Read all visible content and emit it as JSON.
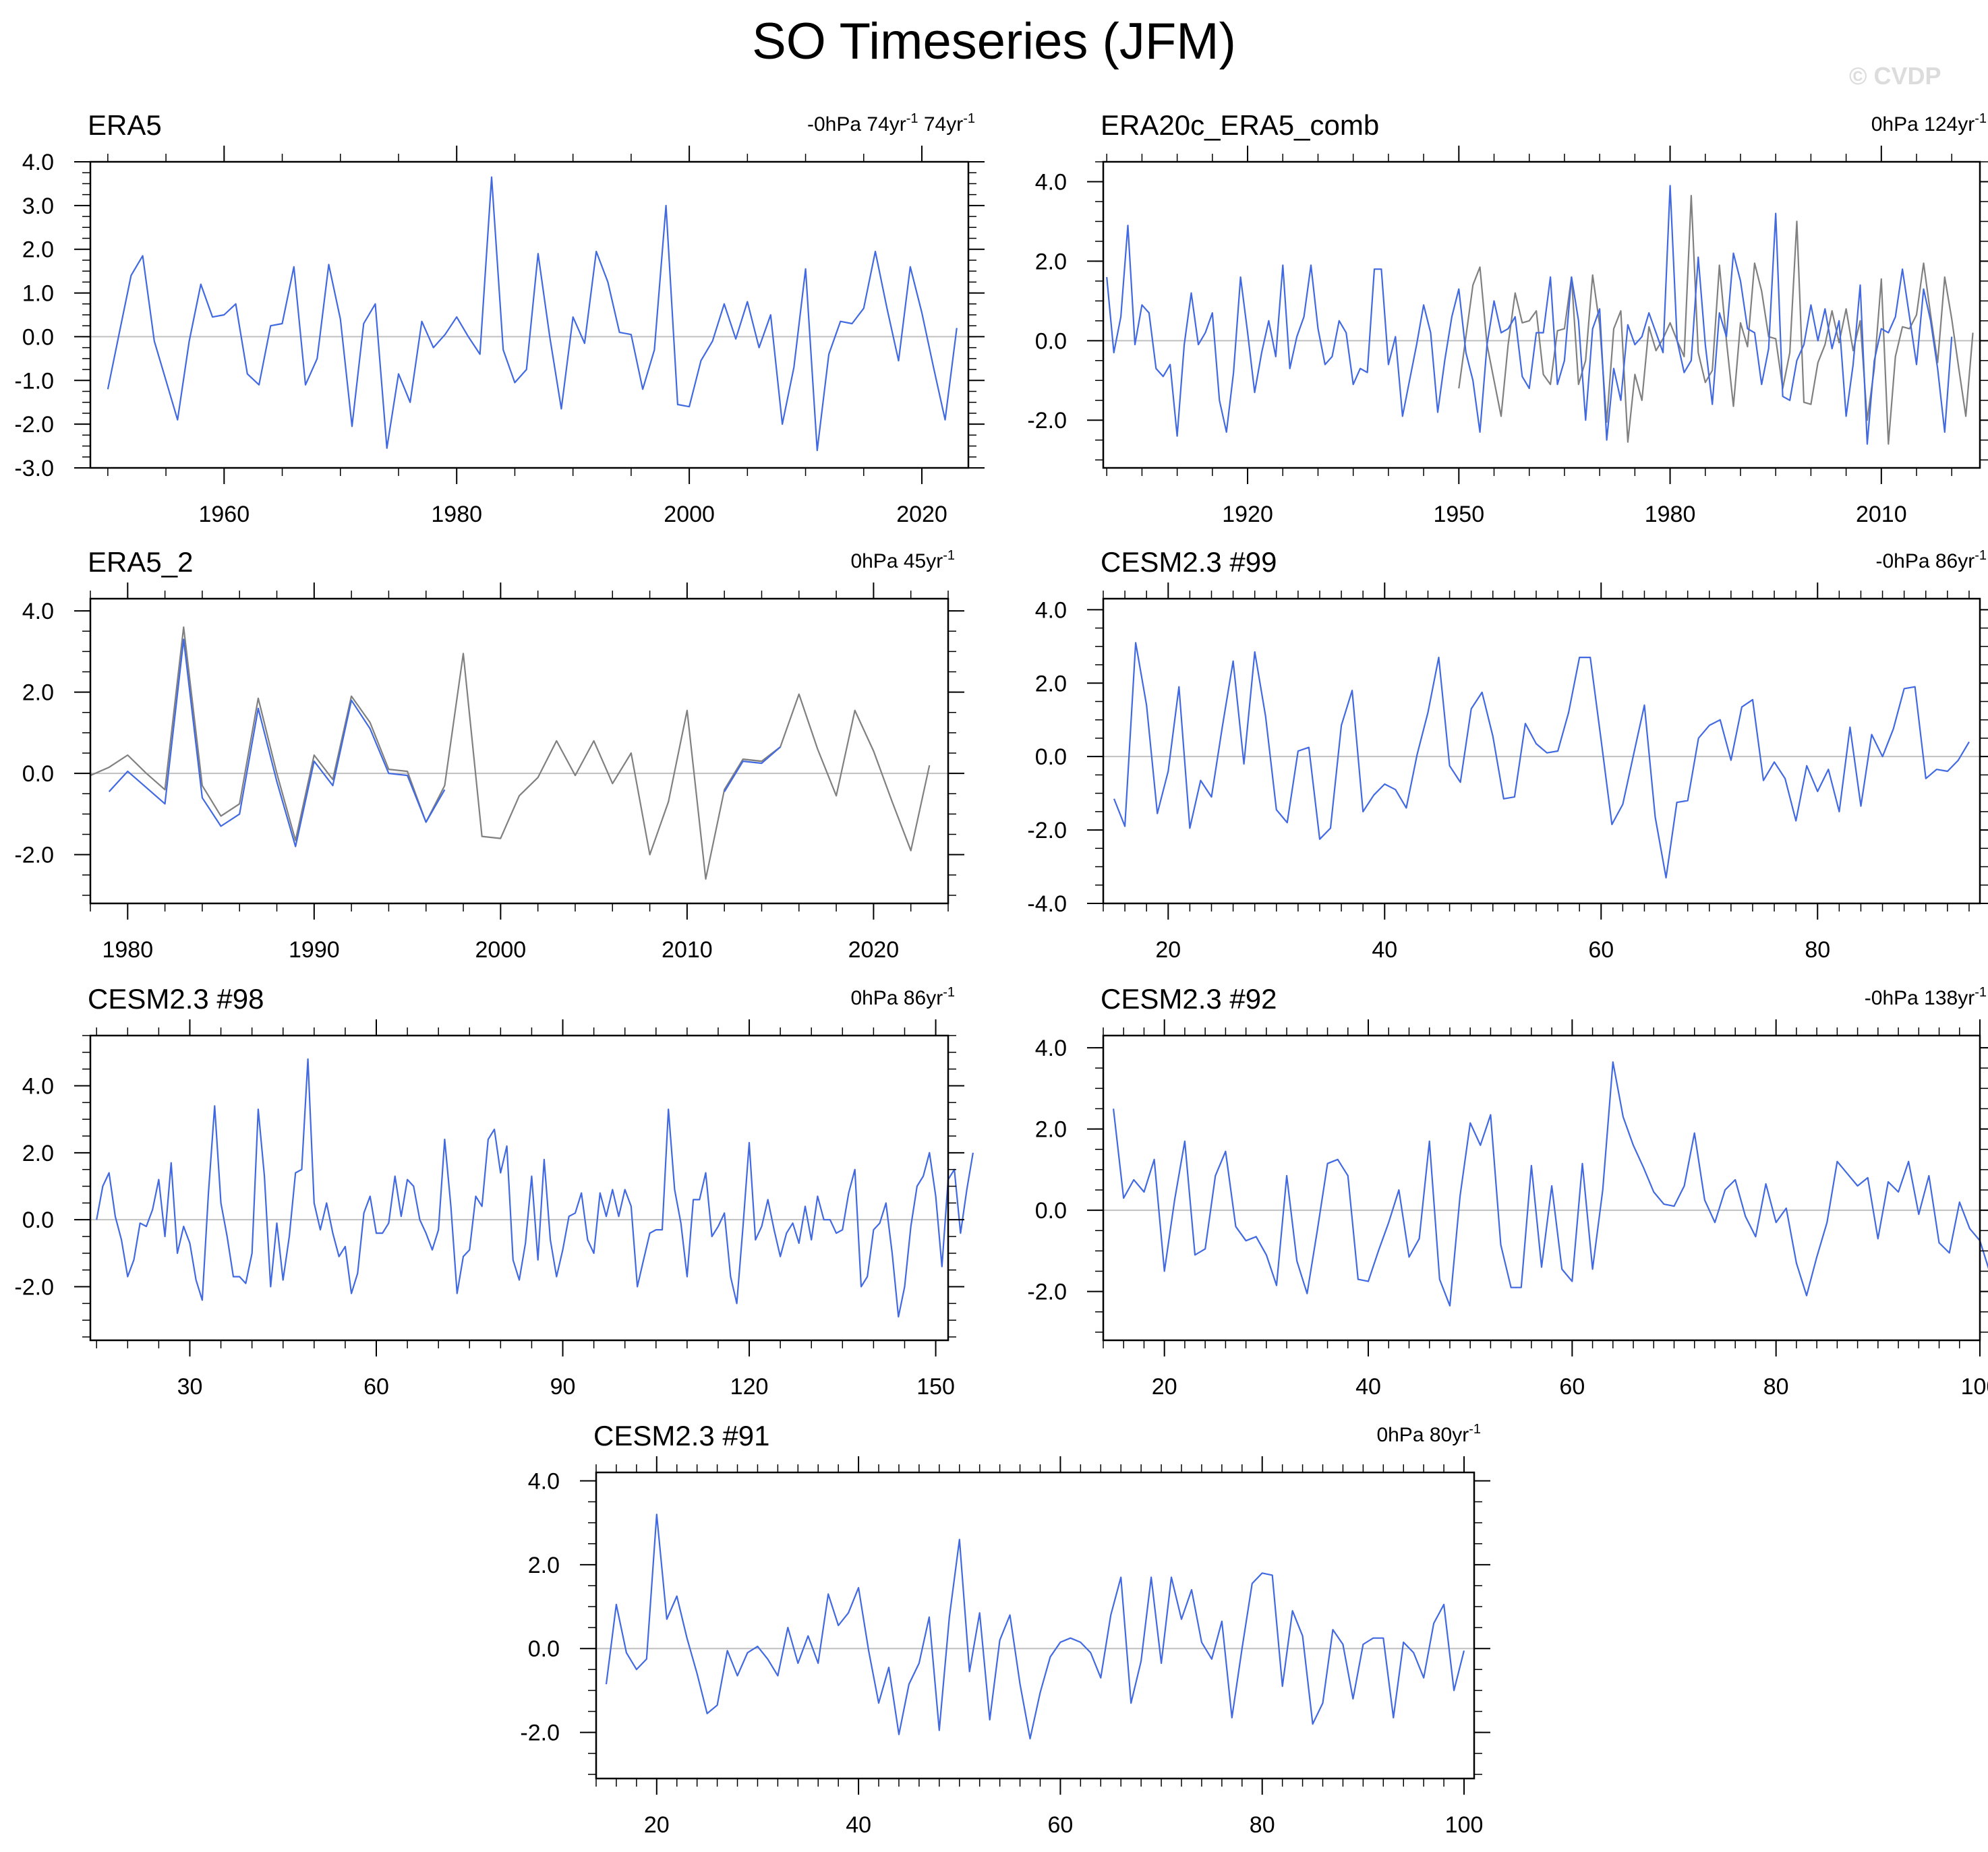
{
  "title": "SO Timeseries (JFM)",
  "watermark": "© CVDP",
  "colors": {
    "series_blue": "#4169e1",
    "series_gray": "#808080",
    "zero_line": "#c0c0c0",
    "axis": "#000000"
  },
  "chart_data": [
    {
      "type": "line",
      "name": "ERA5",
      "annotation": "-0hPa 74yr",
      "annotation_sup": "-1",
      "annotation2": " 74yr",
      "annotation2_sup": "-1",
      "xlim": [
        1948.5,
        2024
      ],
      "ylim": [
        -3.0,
        4.0
      ],
      "yticks": [
        -3,
        -2,
        -1,
        0,
        1,
        2,
        3,
        4
      ],
      "ylabels": [
        "-3.0",
        "-2.0",
        "-1.0",
        "0.0",
        "1.0",
        "2.0",
        "3.0",
        "4.0"
      ],
      "xticks": [
        1960,
        1980,
        2000,
        2020
      ],
      "xlabels": [
        "1960",
        "1980",
        "2000",
        "2020"
      ],
      "ytick_minor": 0.25,
      "xtick_minor": 5,
      "grid": false,
      "series": [
        {
          "color": "#4169e1",
          "x0": 1950,
          "values": [
            -1.2,
            0.1,
            1.4,
            1.85,
            -0.1,
            -1.0,
            -1.9,
            -0.1,
            1.2,
            0.45,
            0.5,
            0.75,
            -0.85,
            -1.1,
            0.25,
            0.3,
            1.6,
            -1.1,
            -0.5,
            1.65,
            0.4,
            -2.05,
            0.3,
            0.75,
            -2.55,
            -0.85,
            -1.5,
            0.35,
            -0.25,
            0.05,
            0.45,
            0.0,
            -0.4,
            3.65,
            -0.3,
            -1.05,
            -0.75,
            1.9,
            0.0,
            -1.65,
            0.45,
            -0.15,
            1.95,
            1.25,
            0.1,
            0.05,
            -1.2,
            -0.3,
            3.0,
            -1.55,
            -1.6,
            -0.55,
            -0.1,
            0.75,
            -0.05,
            0.8,
            -0.25,
            0.5,
            -2.0,
            -0.7,
            1.55,
            -2.6,
            -0.4,
            0.35,
            0.3,
            0.65,
            1.95,
            0.65,
            -0.55,
            1.6,
            0.55,
            -0.7,
            -1.9,
            0.2
          ]
        }
      ]
    },
    {
      "type": "line",
      "name": "ERA20c_ERA5_comb",
      "annotation": "0hPa 124yr",
      "annotation_sup": "-1",
      "xlim": [
        1899.5,
        2024
      ],
      "ylim": [
        -3.2,
        4.5
      ],
      "yticks": [
        -2,
        0,
        2,
        4
      ],
      "ylabels": [
        "-2.0",
        "0.0",
        "2.0",
        "4.0"
      ],
      "xticks": [
        1920,
        1950,
        1980,
        2010
      ],
      "xlabels": [
        "1920",
        "1950",
        "1980",
        "2010"
      ],
      "ytick_minor": 0.5,
      "xtick_minor": 5,
      "grid": false,
      "series": [
        {
          "color": "#808080",
          "x0": 1950,
          "values": [
            -1.2,
            0.1,
            1.4,
            1.85,
            -0.1,
            -1.0,
            -1.9,
            -0.1,
            1.2,
            0.45,
            0.5,
            0.75,
            -0.85,
            -1.1,
            0.25,
            0.3,
            1.6,
            -1.1,
            -0.5,
            1.65,
            0.4,
            -2.05,
            0.3,
            0.75,
            -2.55,
            -0.85,
            -1.5,
            0.35,
            -0.25,
            0.05,
            0.45,
            0.0,
            -0.4,
            3.65,
            -0.3,
            -1.05,
            -0.75,
            1.9,
            0.0,
            -1.65,
            0.45,
            -0.15,
            1.95,
            1.25,
            0.1,
            0.05,
            -1.2,
            -0.3,
            3.0,
            -1.55,
            -1.6,
            -0.55,
            -0.1,
            0.75,
            -0.05,
            0.8,
            -0.25,
            0.5,
            -2.0,
            -0.7,
            1.55,
            -2.6,
            -0.4,
            0.35,
            0.3,
            0.65,
            1.95,
            0.65,
            -0.55,
            1.6,
            0.55,
            -0.7,
            -1.9,
            0.2
          ]
        },
        {
          "color": "#4169e1",
          "x0": 1900,
          "values": [
            1.6,
            -0.3,
            0.6,
            2.9,
            -0.1,
            0.9,
            0.7,
            -0.7,
            -0.9,
            -0.6,
            -2.4,
            -0.1,
            1.2,
            -0.1,
            0.2,
            0.7,
            -1.5,
            -2.3,
            -0.8,
            1.6,
            0.2,
            -1.3,
            -0.3,
            0.5,
            -0.4,
            1.9,
            -0.7,
            0.1,
            0.6,
            1.9,
            0.3,
            -0.6,
            -0.4,
            0.5,
            0.2,
            -1.1,
            -0.7,
            -0.8,
            1.8,
            1.8,
            -0.6,
            0.1,
            -1.9,
            -1.0,
            -0.1,
            0.9,
            0.2,
            -1.8,
            -0.5,
            0.6,
            1.3,
            -0.3,
            -1.0,
            -2.3,
            -0.1,
            1.0,
            0.2,
            0.3,
            0.6,
            -0.9,
            -1.2,
            0.2,
            0.2,
            1.6,
            -1.1,
            -0.5,
            1.6,
            0.5,
            -2.0,
            0.3,
            0.8,
            -2.5,
            -0.7,
            -1.5,
            0.4,
            -0.1,
            0.1,
            0.7,
            0.2,
            -0.3,
            3.9,
            0.0,
            -0.8,
            -0.5,
            2.1,
            -0.1,
            -1.6,
            0.7,
            0.1,
            2.2,
            1.5,
            0.3,
            0.2,
            -1.1,
            -0.2,
            3.2,
            -1.4,
            -1.5,
            -0.5,
            -0.1,
            0.9,
            0.0,
            0.8,
            -0.2,
            0.5,
            -1.9,
            -0.6,
            1.4,
            -2.6,
            -0.5,
            0.3,
            0.2,
            0.6,
            1.8,
            0.6,
            -0.6,
            1.3,
            0.5,
            -0.7,
            -2.3,
            0.1
          ]
        }
      ]
    },
    {
      "type": "line",
      "name": "ERA5_2",
      "annotation": "0hPa 45yr",
      "annotation_sup": "-1",
      "xlim": [
        1978,
        2024
      ],
      "ylim": [
        -3.2,
        4.3
      ],
      "yticks": [
        -2,
        0,
        2,
        4
      ],
      "ylabels": [
        "-2.0",
        "0.0",
        "2.0",
        "4.0"
      ],
      "xticks": [
        1980,
        1990,
        2000,
        2010,
        2020
      ],
      "xlabels": [
        "1980",
        "1990",
        "2000",
        "2010",
        "2020"
      ],
      "ytick_minor": 0.5,
      "xtick_minor": 2,
      "grid": false,
      "series": [
        {
          "color": "#808080",
          "x0": 1978,
          "values": [
            -0.05,
            0.15,
            0.45,
            0.0,
            -0.4,
            3.6,
            -0.3,
            -1.05,
            -0.75,
            1.85,
            0.0,
            -1.65,
            0.45,
            -0.15,
            1.9,
            1.25,
            0.1,
            0.05,
            -1.2,
            -0.3,
            2.95,
            -1.55,
            -1.6,
            -0.55,
            -0.1,
            0.8,
            -0.05,
            0.8,
            -0.25,
            0.5,
            -2.0,
            -0.7,
            1.55,
            -2.6,
            -0.4,
            0.35,
            0.3,
            0.65,
            1.95,
            0.6,
            -0.55,
            1.55,
            0.55,
            -0.7,
            -1.9,
            0.2
          ]
        },
        {
          "color": "#4169e1",
          "x0": 1979,
          "values": [
            -0.45,
            0.05,
            -0.35,
            -0.75,
            3.3,
            -0.6,
            -1.3,
            -1.0,
            1.6,
            -0.2,
            -1.8,
            0.3,
            -0.3,
            1.8,
            1.1,
            0.0,
            -0.05,
            -1.2,
            -0.4
          ]
        },
        {
          "color": "#808080",
          "x0": 2012,
          "values": [
            -0.4,
            0.35,
            0.3,
            0.65
          ]
        },
        {
          "color": "#4169e1",
          "x0": 2012,
          "values": [
            -0.45,
            0.3,
            0.25,
            0.65
          ]
        }
      ]
    },
    {
      "type": "line",
      "name": "CESM2.3 #99",
      "annotation": "-0hPa 86yr",
      "annotation_sup": "-1",
      "xlim": [
        14,
        95
      ],
      "ylim": [
        -4.0,
        4.3
      ],
      "yticks": [
        -4,
        -2,
        0,
        2,
        4
      ],
      "ylabels": [
        "-4.0",
        "-2.0",
        "0.0",
        "2.0",
        "4.0"
      ],
      "xticks": [
        20,
        40,
        60,
        80
      ],
      "xlabels": [
        "20",
        "40",
        "60",
        "80"
      ],
      "ytick_minor": 0.5,
      "xtick_minor": 2,
      "grid": false,
      "series": [
        {
          "color": "#4169e1",
          "x0": 15,
          "values": [
            -1.15,
            -1.9,
            3.1,
            1.4,
            -1.55,
            -0.4,
            1.9,
            -1.95,
            -0.65,
            -1.1,
            0.8,
            2.6,
            -0.2,
            2.85,
            1.1,
            -1.45,
            -1.8,
            0.15,
            0.25,
            -2.25,
            -1.95,
            0.85,
            1.8,
            -1.5,
            -1.05,
            -0.75,
            -0.9,
            -1.4,
            0.05,
            1.2,
            2.7,
            -0.25,
            -0.7,
            1.3,
            1.75,
            0.55,
            -1.15,
            -1.1,
            0.9,
            0.35,
            0.1,
            0.15,
            1.2,
            2.7,
            2.7,
            0.45,
            -1.85,
            -1.3,
            0.05,
            1.4,
            -1.65,
            -3.3,
            -1.25,
            -1.2,
            0.5,
            0.85,
            1.0,
            -0.1,
            1.35,
            1.55,
            -0.65,
            -0.15,
            -0.6,
            -1.75,
            -0.25,
            -0.95,
            -0.35,
            -1.5,
            0.8,
            -1.35,
            0.6,
            0.0,
            0.75,
            1.85,
            1.9,
            -0.6,
            -0.35,
            -0.4,
            -0.1,
            0.4
          ]
        }
      ]
    },
    {
      "type": "line",
      "name": "CESM2.3 #98",
      "annotation": "0hPa 86yr",
      "annotation_sup": "-1",
      "xlim": [
        14,
        152
      ],
      "ylim": [
        -3.6,
        5.5
      ],
      "yticks": [
        -2,
        0,
        2,
        4
      ],
      "ylabels": [
        "-2.0",
        "0.0",
        "2.0",
        "4.0"
      ],
      "xticks": [
        30,
        60,
        90,
        120,
        150
      ],
      "xlabels": [
        "30",
        "60",
        "90",
        "120",
        "150"
      ],
      "ytick_minor": 0.5,
      "xtick_minor": 5,
      "grid": false,
      "series": [
        {
          "color": "#4169e1",
          "x0": 15,
          "values": [
            0.0,
            1.0,
            1.4,
            0.1,
            -0.6,
            -1.7,
            -1.2,
            -0.1,
            -0.2,
            0.3,
            1.2,
            -0.5,
            1.7,
            -1.0,
            -0.2,
            -0.7,
            -1.8,
            -2.4,
            0.8,
            3.4,
            0.5,
            -0.5,
            -1.7,
            -1.7,
            -1.9,
            -1.0,
            3.3,
            1.3,
            -2.0,
            -0.1,
            -1.8,
            -0.5,
            1.4,
            1.5,
            4.8,
            0.5,
            -0.3,
            0.5,
            -0.4,
            -1.1,
            -0.8,
            -2.2,
            -1.6,
            0.2,
            0.7,
            -0.4,
            -0.4,
            -0.1,
            1.3,
            0.1,
            1.2,
            1.0,
            0.0,
            -0.4,
            -0.9,
            -0.3,
            2.4,
            0.4,
            -2.2,
            -1.1,
            -0.9,
            0.7,
            0.4,
            2.4,
            2.7,
            1.4,
            2.2,
            -1.2,
            -1.8,
            -0.7,
            1.3,
            -1.2,
            1.8,
            -0.6,
            -1.7,
            -0.9,
            0.1,
            0.2,
            0.8,
            -0.6,
            -1.0,
            0.8,
            0.1,
            0.9,
            0.1,
            0.9,
            0.4,
            -2.0,
            -1.2,
            -0.4,
            -0.3,
            -0.3,
            3.3,
            0.9,
            -0.1,
            -1.7,
            0.6,
            0.6,
            1.4,
            -0.5,
            -0.2,
            0.2,
            -1.7,
            -2.5,
            -0.2,
            2.3,
            -0.6,
            -0.2,
            0.6,
            -0.3,
            -1.1,
            -0.4,
            -0.1,
            -0.7,
            0.4,
            -0.6,
            0.7,
            0.0,
            0.0,
            -0.4,
            -0.3,
            0.8,
            1.5,
            -2.0,
            -1.7,
            -0.3,
            -0.1,
            0.5,
            -1.0,
            -2.9,
            -2.0,
            -0.2,
            1.0,
            1.3,
            2.0,
            0.7,
            -1.4,
            1.2,
            1.5,
            -0.4,
            0.9,
            2.0
          ]
        }
      ]
    },
    {
      "type": "line",
      "name": "CESM2.3 #92",
      "annotation": "-0hPa 138yr",
      "annotation_sup": "-1",
      "xlim": [
        14,
        100
      ],
      "ylim": [
        -3.2,
        4.3
      ],
      "yticks": [
        -2,
        0,
        2,
        4
      ],
      "ylabels": [
        "-2.0",
        "0.0",
        "2.0",
        "4.0"
      ],
      "xticks": [
        20,
        40,
        60,
        80,
        100
      ],
      "xlabels": [
        "20",
        "40",
        "60",
        "80",
        "100"
      ],
      "ytick_minor": 0.5,
      "xtick_minor": 2,
      "grid": false,
      "series": [
        {
          "color": "#4169e1",
          "x0": 15,
          "values": [
            2.5,
            0.3,
            0.75,
            0.45,
            1.25,
            -1.5,
            0.25,
            1.7,
            -1.1,
            -0.95,
            0.85,
            1.45,
            -0.4,
            -0.75,
            -0.65,
            -1.1,
            -1.85,
            0.85,
            -1.25,
            -2.05,
            -0.5,
            1.15,
            1.25,
            0.85,
            -1.7,
            -1.75,
            -1.0,
            -0.3,
            0.5,
            -1.15,
            -0.7,
            1.7,
            -1.7,
            -2.35,
            0.35,
            2.15,
            1.6,
            2.35,
            -0.85,
            -1.9,
            -1.9,
            1.1,
            -1.4,
            0.6,
            -1.45,
            -1.75,
            1.15,
            -1.45,
            0.5,
            3.65,
            2.3,
            1.6,
            1.05,
            0.45,
            0.15,
            0.1,
            0.6,
            1.9,
            0.25,
            -0.3,
            0.5,
            0.75,
            -0.15,
            -0.65,
            0.65,
            -0.3,
            0.05,
            -1.3,
            -2.1,
            -1.15,
            -0.3,
            1.2,
            0.9,
            0.6,
            0.8,
            -0.7,
            0.7,
            0.45,
            1.2,
            -0.1,
            0.85,
            -0.8,
            -1.05,
            0.2,
            -0.45,
            -0.75,
            -1.55
          ]
        }
      ]
    },
    {
      "type": "line",
      "name": "CESM2.3 #91",
      "annotation": "0hPa 80yr",
      "annotation_sup": "-1",
      "xlim": [
        14,
        101
      ],
      "ylim": [
        -3.1,
        4.2
      ],
      "yticks": [
        -2,
        0,
        2,
        4
      ],
      "ylabels": [
        "-2.0",
        "0.0",
        "2.0",
        "4.0"
      ],
      "xticks": [
        20,
        40,
        60,
        80,
        100
      ],
      "xlabels": [
        "20",
        "40",
        "60",
        "80",
        "100"
      ],
      "ytick_minor": 0.5,
      "xtick_minor": 2,
      "grid": false,
      "series": [
        {
          "color": "#4169e1",
          "x0": 15,
          "values": [
            -0.85,
            1.05,
            -0.1,
            -0.5,
            -0.25,
            3.2,
            0.7,
            1.25,
            0.25,
            -0.6,
            -1.55,
            -1.35,
            -0.05,
            -0.65,
            -0.1,
            0.05,
            -0.25,
            -0.65,
            0.5,
            -0.35,
            0.3,
            -0.35,
            1.3,
            0.55,
            0.85,
            1.45,
            -0.05,
            -1.3,
            -0.45,
            -2.05,
            -0.85,
            -0.35,
            0.75,
            -1.95,
            0.75,
            2.6,
            -0.55,
            0.85,
            -1.7,
            0.2,
            0.8,
            -0.85,
            -2.15,
            -1.05,
            -0.2,
            0.15,
            0.25,
            0.15,
            -0.1,
            -0.7,
            0.8,
            1.7,
            -1.3,
            -0.3,
            1.7,
            -0.35,
            1.7,
            0.7,
            1.4,
            0.15,
            -0.25,
            0.65,
            -1.65,
            0.0,
            1.55,
            1.8,
            1.75,
            -0.9,
            0.9,
            0.3,
            -1.8,
            -1.3,
            0.45,
            0.1,
            -1.2,
            0.1,
            0.25,
            0.25,
            -1.65,
            0.15,
            -0.1,
            -0.7,
            0.6,
            1.05,
            -1.0,
            -0.05
          ]
        }
      ]
    }
  ]
}
